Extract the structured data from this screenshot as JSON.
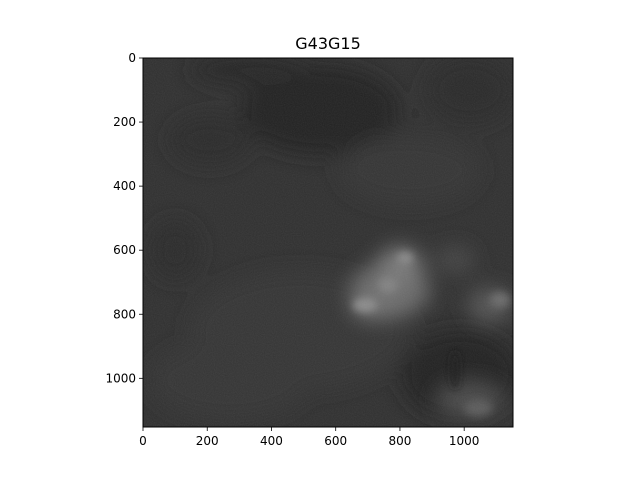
{
  "figure": {
    "title": "G43G15"
  },
  "image": {
    "description_tag": "grayscale-satellite-image",
    "colors": {
      "base": "#2f2f2f",
      "dark": "#202020",
      "light": "#9a9a9a"
    }
  },
  "axes": {
    "x_ticks": [
      "0",
      "200",
      "400",
      "600",
      "800",
      "1000"
    ],
    "y_ticks": [
      "0",
      "200",
      "400",
      "600",
      "800",
      "1000"
    ],
    "x_range": [
      0,
      1152
    ],
    "y_range": [
      0,
      1152
    ],
    "y_inverted": true
  }
}
